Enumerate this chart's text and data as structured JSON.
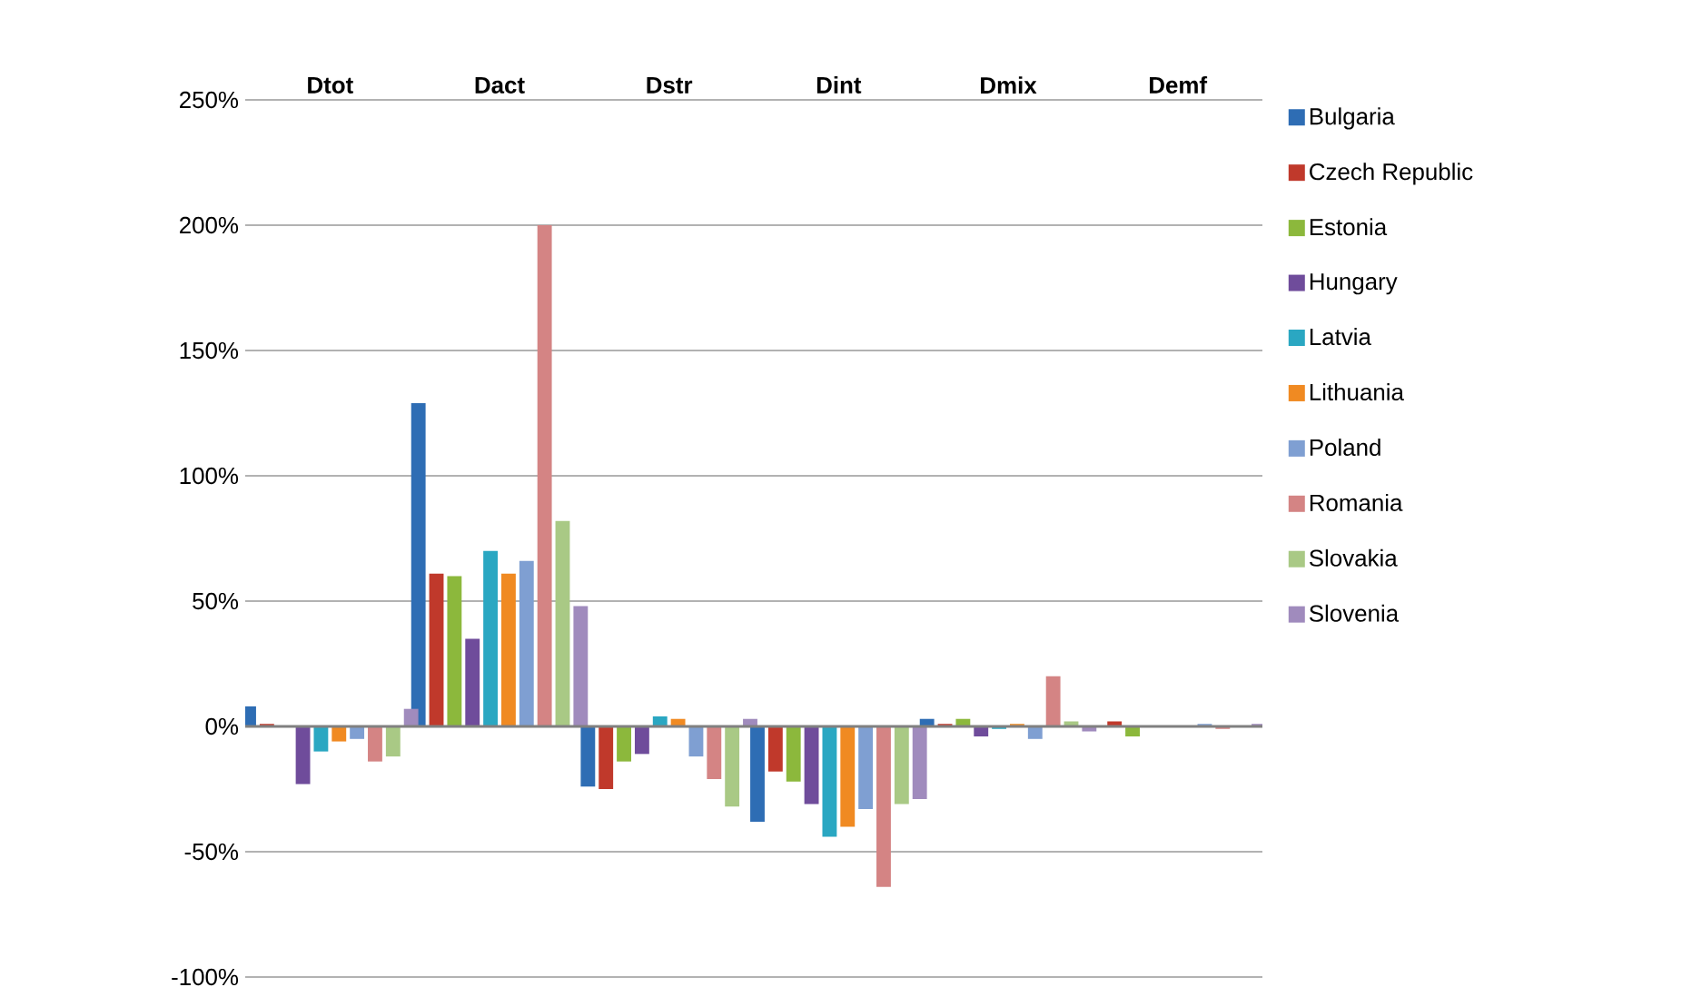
{
  "chart_data": {
    "type": "bar",
    "categories": [
      "Dtot",
      "Dact",
      "Dstr",
      "Dint",
      "Dmix",
      "Demf"
    ],
    "series": [
      {
        "name": "Bulgaria",
        "color": "#2e6db4",
        "values": [
          8,
          129,
          -24,
          -38,
          3,
          0
        ]
      },
      {
        "name": "Czech Republic",
        "color": "#c0392b",
        "values": [
          1,
          61,
          -25,
          -18,
          1,
          2
        ]
      },
      {
        "name": "Estonia",
        "color": "#8cb83c",
        "values": [
          0,
          60,
          -14,
          -22,
          3,
          -4
        ]
      },
      {
        "name": "Hungary",
        "color": "#6f4c9b",
        "values": [
          -23,
          35,
          -11,
          -31,
          -4,
          0
        ]
      },
      {
        "name": "Latvia",
        "color": "#2aa7c2",
        "values": [
          -10,
          70,
          4,
          -44,
          -1,
          0
        ]
      },
      {
        "name": "Lithuania",
        "color": "#f08a22",
        "values": [
          -6,
          61,
          3,
          -40,
          1,
          0
        ]
      },
      {
        "name": "Poland",
        "color": "#7f9fd2",
        "values": [
          -5,
          66,
          -12,
          -33,
          -5,
          1
        ]
      },
      {
        "name": "Romania",
        "color": "#d48484",
        "values": [
          -14,
          200,
          -21,
          -64,
          20,
          -1
        ]
      },
      {
        "name": "Slovakia",
        "color": "#a9c985",
        "values": [
          -12,
          82,
          -32,
          -31,
          2,
          0
        ]
      },
      {
        "name": "Slovenia",
        "color": "#a08bbd",
        "values": [
          7,
          48,
          3,
          -29,
          -2,
          1
        ]
      }
    ],
    "ylim": [
      -100,
      250
    ],
    "yticks": [
      {
        "value": -100,
        "label": "-100%"
      },
      {
        "value": -50,
        "label": "-50%"
      },
      {
        "value": 0,
        "label": "0%"
      },
      {
        "value": 50,
        "label": "50%"
      },
      {
        "value": 100,
        "label": "100%"
      },
      {
        "value": 150,
        "label": "150%"
      },
      {
        "value": 200,
        "label": "200%"
      },
      {
        "value": 250,
        "label": "250%"
      }
    ],
    "grid": "y",
    "legend": "right"
  }
}
